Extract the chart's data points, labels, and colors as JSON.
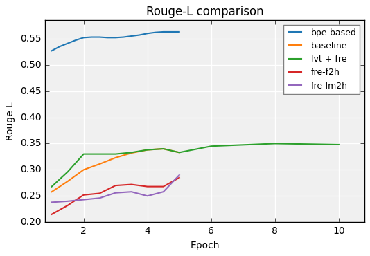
{
  "title": "Rouge-L comparison",
  "xlabel": "Epoch",
  "ylabel": "Rouge L",
  "ylim": [
    0.2,
    0.585
  ],
  "yticks": [
    0.2,
    0.25,
    0.3,
    0.35,
    0.4,
    0.45,
    0.5,
    0.55
  ],
  "xlim": [
    0.8,
    10.8
  ],
  "xticks": [
    2,
    4,
    6,
    8,
    10
  ],
  "series": [
    {
      "label": "bpe-based",
      "color": "#1f77b4",
      "x": [
        1,
        1.25,
        1.5,
        1.75,
        2,
        2.25,
        2.5,
        2.75,
        3,
        3.25,
        3.5,
        3.75,
        4,
        4.25,
        4.5,
        5
      ],
      "y": [
        0.527,
        0.535,
        0.541,
        0.547,
        0.552,
        0.553,
        0.553,
        0.552,
        0.552,
        0.553,
        0.555,
        0.557,
        0.56,
        0.562,
        0.563,
        0.563
      ]
    },
    {
      "label": "baseline",
      "color": "#ff7f0e",
      "x": [
        1,
        1.5,
        2,
        2.5,
        3,
        3.5,
        4,
        4.5,
        5
      ],
      "y": [
        0.258,
        0.278,
        0.3,
        0.311,
        0.323,
        0.332,
        0.338,
        0.34,
        0.333
      ]
    },
    {
      "label": "lvt + fre",
      "color": "#2ca02c",
      "x": [
        1,
        1.5,
        2,
        2.5,
        3,
        3.5,
        4,
        4.5,
        5,
        6,
        8,
        10
      ],
      "y": [
        0.268,
        0.296,
        0.33,
        0.33,
        0.33,
        0.333,
        0.338,
        0.34,
        0.333,
        0.345,
        0.35,
        0.348
      ]
    },
    {
      "label": "fre-f2h",
      "color": "#d62728",
      "x": [
        1,
        1.5,
        2,
        2.5,
        3,
        3.5,
        4,
        4.5,
        5
      ],
      "y": [
        0.215,
        0.232,
        0.252,
        0.255,
        0.27,
        0.272,
        0.268,
        0.268,
        0.285
      ]
    },
    {
      "label": "fre-lm2h",
      "color": "#9467bd",
      "x": [
        1,
        1.5,
        2,
        2.5,
        3,
        3.5,
        4,
        4.5,
        5
      ],
      "y": [
        0.238,
        0.24,
        0.243,
        0.246,
        0.256,
        0.258,
        0.25,
        0.258,
        0.29
      ]
    }
  ],
  "grid": true,
  "legend_loc": "upper right",
  "figsize": [
    5.34,
    3.7
  ],
  "dpi": 100,
  "bg_color": "#f0f0f0",
  "fig_bg_color": "#f0f0f0",
  "grid_color": "white",
  "title_fontsize": 12,
  "label_fontsize": 10,
  "tick_fontsize": 10,
  "legend_fontsize": 9,
  "linewidth": 1.5
}
